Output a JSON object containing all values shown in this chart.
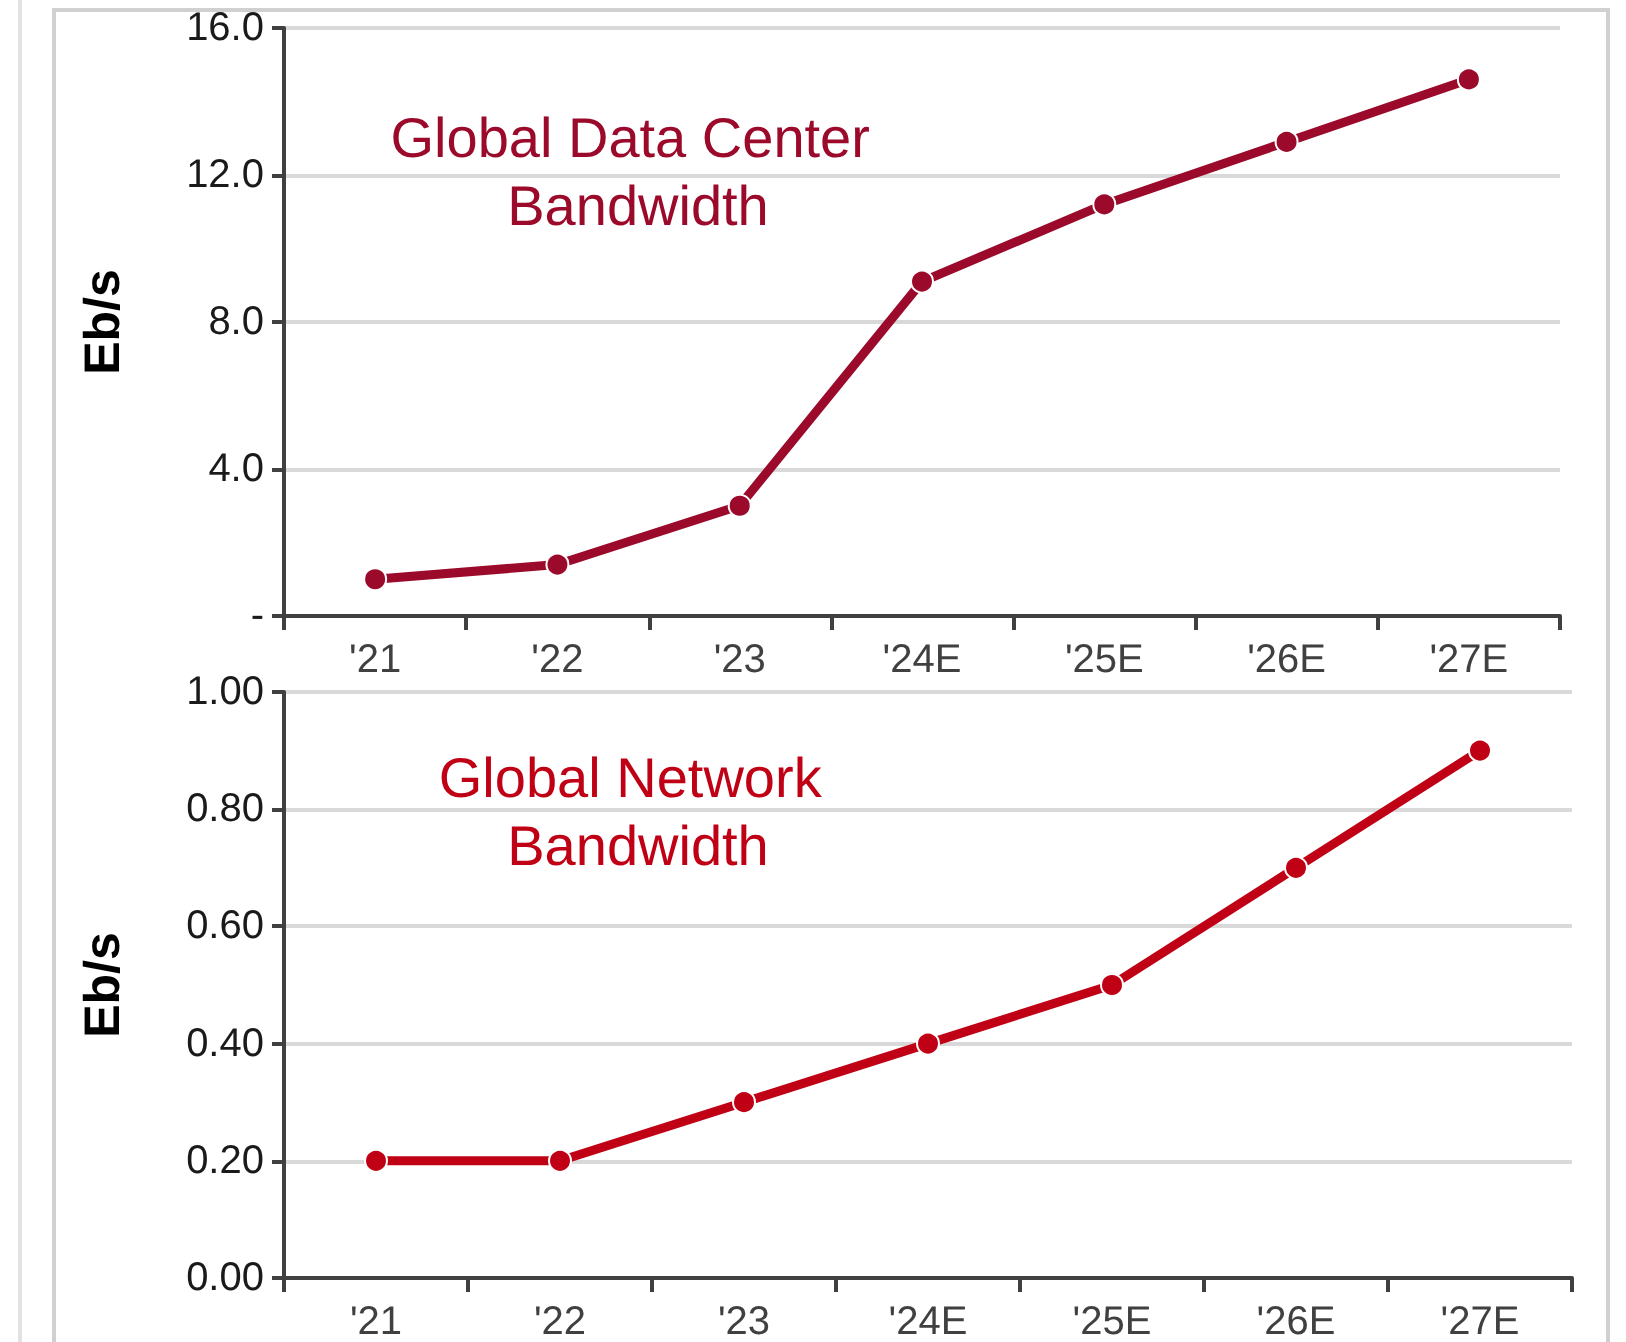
{
  "chart_data": [
    {
      "type": "line",
      "title": "Global Data Center Bandwidth",
      "ylabel": "Eb/s",
      "categories": [
        "'21",
        "'22",
        "'23",
        "'24E",
        "'25E",
        "'26E",
        "'27E"
      ],
      "series": [
        {
          "color": "#9b0a2a",
          "values": [
            1.0,
            1.4,
            3.0,
            9.1,
            11.2,
            12.9,
            14.6
          ]
        }
      ],
      "ylim": [
        0,
        16
      ],
      "yticks": [
        {
          "value": 0,
          "label": "-"
        },
        {
          "value": 4,
          "label": "4.0"
        },
        {
          "value": 8,
          "label": "8.0"
        },
        {
          "value": 12,
          "label": "12.0"
        },
        {
          "value": 16,
          "label": "16.0"
        }
      ],
      "grid": "y",
      "marker": "circle",
      "line_style": "solid"
    },
    {
      "type": "line",
      "title": "Global Network Bandwidth",
      "ylabel": "Eb/s",
      "categories": [
        "'21",
        "'22",
        "'23",
        "'24E",
        "'25E",
        "'26E",
        "'27E"
      ],
      "series": [
        {
          "color": "#c00014",
          "values": [
            0.2,
            0.2,
            0.3,
            0.4,
            0.5,
            0.7,
            0.9
          ]
        }
      ],
      "ylim": [
        0,
        1
      ],
      "yticks": [
        {
          "value": 0,
          "label": "0.00"
        },
        {
          "value": 0.2,
          "label": "0.20"
        },
        {
          "value": 0.4,
          "label": "0.40"
        },
        {
          "value": 0.6,
          "label": "0.60"
        },
        {
          "value": 0.8,
          "label": "0.80"
        },
        {
          "value": 1,
          "label": "1.00"
        }
      ],
      "grid": "y",
      "marker": "circle",
      "line_style": "solid"
    }
  ]
}
